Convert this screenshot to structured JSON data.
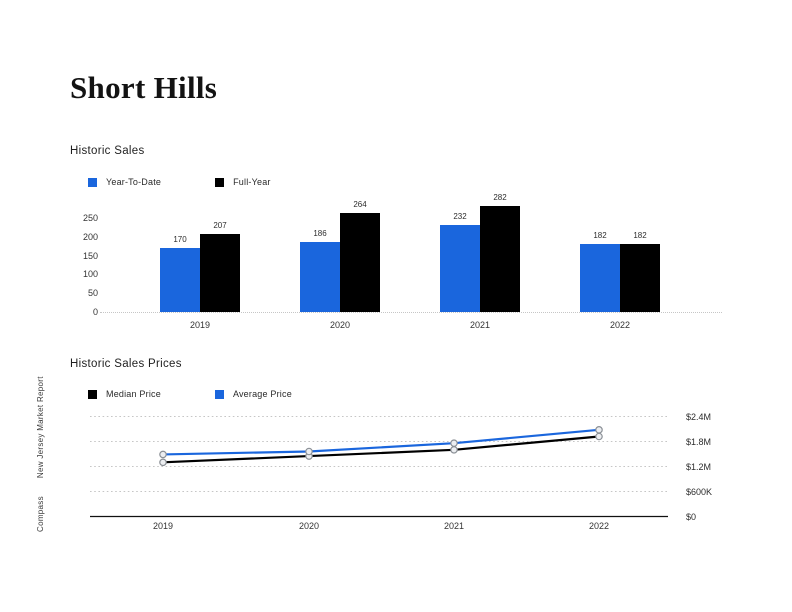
{
  "page": {
    "title": "Short Hills"
  },
  "sidebar": {
    "brand": "Compass",
    "report": "New Jersey Market Report"
  },
  "colors": {
    "accent_blue": "#1a66dd",
    "series_black": "#000000",
    "gridline": "#c6c6c6",
    "marker_fill": "#eceef1",
    "marker_stroke": "#8b9096"
  },
  "chart_data": [
    {
      "type": "bar",
      "title": "Historic Sales",
      "categories": [
        "2019",
        "2020",
        "2021",
        "2022"
      ],
      "series": [
        {
          "name": "Year-To-Date",
          "color": "#1a66dd",
          "values": [
            170,
            186,
            232,
            182
          ]
        },
        {
          "name": "Full-Year",
          "color": "#000000",
          "values": [
            207,
            264,
            282,
            182
          ]
        }
      ],
      "yticks": [
        250,
        200,
        150,
        100,
        50,
        0
      ],
      "ylim": [
        0,
        300
      ],
      "grid": "baseline-dotted-only",
      "legend_position": "top",
      "bar_value_labels": true
    },
    {
      "type": "line",
      "title": "Historic Sales Prices",
      "x": [
        "2019",
        "2020",
        "2021",
        "2022"
      ],
      "series": [
        {
          "name": "Median Price",
          "color": "#000000",
          "values_musd": [
            1.3,
            1.45,
            1.6,
            1.92
          ]
        },
        {
          "name": "Average Price",
          "color": "#1a66dd",
          "values_musd": [
            1.49,
            1.56,
            1.76,
            2.08
          ]
        }
      ],
      "ytick_labels": [
        "$2.4M",
        "$1.8M",
        "$1.2M",
        "$600K",
        "$0"
      ],
      "ytick_values_musd": [
        2.4,
        1.8,
        1.2,
        0.6,
        0
      ],
      "ylim_musd": [
        0,
        2.6
      ],
      "unit": "USD",
      "grid": "dotted-horizontal",
      "legend_position": "top",
      "markers": "circle"
    }
  ]
}
